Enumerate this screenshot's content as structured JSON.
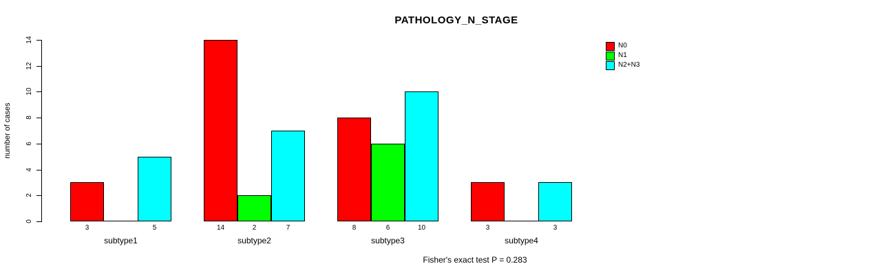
{
  "title": "PATHOLOGY_N_STAGE",
  "chart_data": {
    "type": "bar",
    "title": "PATHOLOGY_N_STAGE",
    "categories": [
      "subtype1",
      "subtype2",
      "subtype3",
      "subtype4"
    ],
    "series": [
      {
        "name": "N0",
        "color": "#FF0000",
        "values": [
          3,
          14,
          8,
          3
        ]
      },
      {
        "name": "N1",
        "color": "#00FF00",
        "values": [
          0,
          2,
          6,
          0
        ]
      },
      {
        "name": "N2+N3",
        "color": "#00FFFF",
        "values": [
          5,
          7,
          10,
          3
        ]
      }
    ],
    "xlabel": "",
    "ylabel": "number of cases",
    "ylim": [
      0,
      14
    ],
    "yticks": [
      0,
      2,
      4,
      6,
      8,
      10,
      12,
      14
    ],
    "grid": false,
    "legend_position": "top-right-inside",
    "bar_value_labels": "shown under each bar; zero-height bars have no label",
    "annotation": "Fisher's exact test P = 0.283"
  }
}
